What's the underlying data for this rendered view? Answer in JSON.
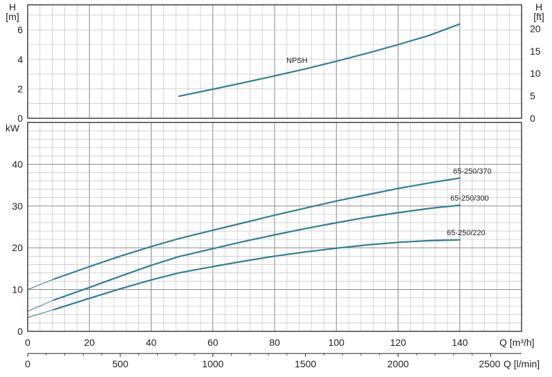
{
  "chart_data": [
    {
      "type": "line",
      "panel": "npsh",
      "ylabel_left": {
        "symbol": "H",
        "unit": "[m]"
      },
      "ylabel_right": {
        "symbol": "H",
        "unit": "[ft]"
      },
      "xlim": [
        0,
        160
      ],
      "ylim_m": [
        0,
        7.7
      ],
      "ylim_ft": [
        0,
        25.3
      ],
      "yticks_m": [
        0,
        2,
        4,
        6
      ],
      "yticks_ft": [
        0,
        5,
        10,
        15,
        20
      ],
      "grid": true,
      "series": [
        {
          "name": "NPSH",
          "x": [
            49,
            60,
            70,
            80,
            90,
            100,
            110,
            120,
            130,
            140
          ],
          "y": [
            1.5,
            1.97,
            2.42,
            2.88,
            3.35,
            3.87,
            4.42,
            5.0,
            5.62,
            6.4
          ]
        }
      ]
    },
    {
      "type": "line",
      "panel": "power",
      "ylabel": "kW",
      "xlabel": "Q [m³/h]",
      "xlabel2": "Q [l/min]",
      "xlim": [
        0,
        160
      ],
      "ylim": [
        0,
        50
      ],
      "xticks": [
        0,
        20,
        40,
        60,
        80,
        100,
        120,
        140
      ],
      "xticks2": [
        0,
        500,
        1000,
        1500,
        2000,
        2500
      ],
      "yticks": [
        0,
        10,
        20,
        30,
        40
      ],
      "grid": true,
      "series": [
        {
          "name": "65-250/370",
          "x": [
            8.5,
            20,
            30,
            40,
            49,
            60,
            70,
            80,
            90,
            100,
            110,
            120,
            130,
            140
          ],
          "y": [
            12.5,
            15.5,
            18.0,
            20.3,
            22.2,
            24.2,
            26.0,
            27.8,
            29.5,
            31.2,
            32.7,
            34.2,
            35.5,
            36.7
          ],
          "extension": {
            "x": [
              0,
              8.5
            ],
            "y": [
              10.0,
              12.5
            ]
          }
        },
        {
          "name": "65-250/300",
          "x": [
            8.5,
            20,
            30,
            40,
            49,
            60,
            70,
            80,
            90,
            100,
            110,
            120,
            130,
            140
          ],
          "y": [
            7.5,
            10.5,
            13.2,
            15.8,
            17.9,
            19.8,
            21.5,
            23.1,
            24.6,
            26.0,
            27.3,
            28.4,
            29.4,
            30.2
          ],
          "extension": {
            "x": [
              0,
              8.5
            ],
            "y": [
              4.8,
              7.5
            ]
          }
        },
        {
          "name": "65-250/220",
          "x": [
            8.5,
            20,
            30,
            40,
            49,
            60,
            70,
            80,
            90,
            100,
            110,
            120,
            130,
            140
          ],
          "y": [
            5.2,
            7.9,
            10.2,
            12.3,
            14.0,
            15.5,
            16.8,
            18.0,
            19.0,
            19.9,
            20.7,
            21.3,
            21.7,
            21.9
          ],
          "extension": {
            "x": [
              0,
              8.5
            ],
            "y": [
              3.3,
              5.2
            ]
          }
        }
      ]
    }
  ],
  "colors": {
    "curve": "#2e7f9b",
    "grid_minor": "#b9b9b9",
    "grid_major": "#7a7a7a",
    "frame": "#222222"
  }
}
